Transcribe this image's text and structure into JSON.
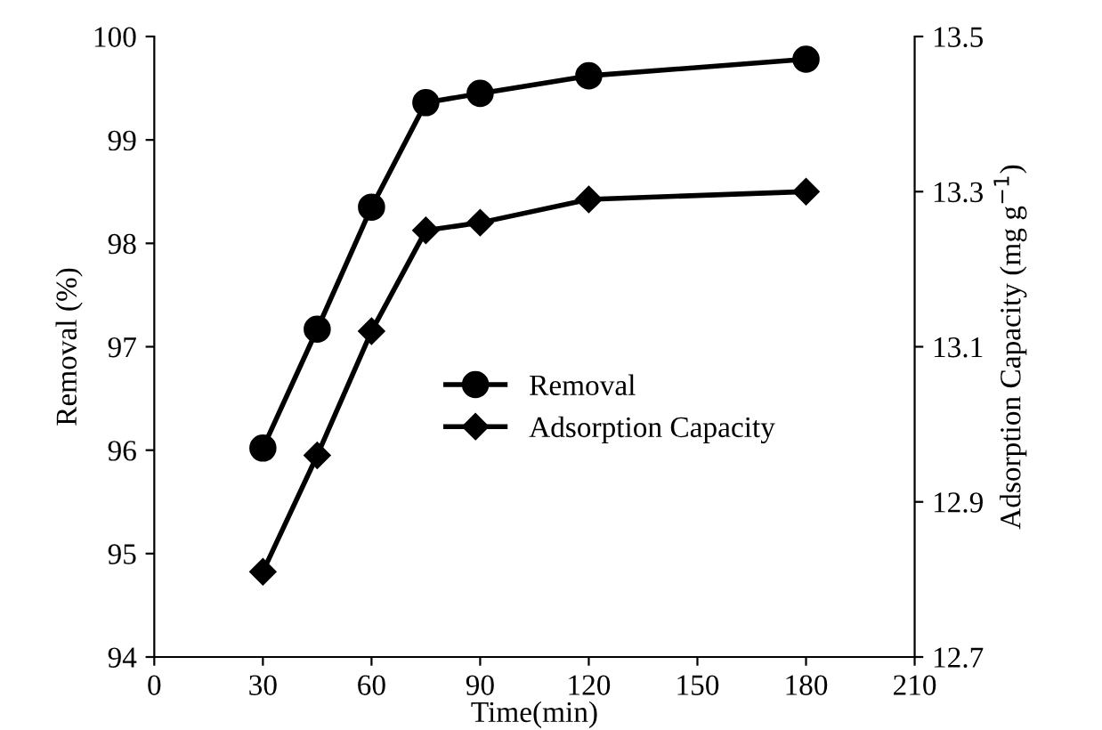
{
  "chart_data": {
    "type": "line",
    "xlabel": "Time(min)",
    "ylabel": "Removal (%)",
    "y2label": "Adsorption Capacity (mg g$^{−1}$)",
    "x": [
      30,
      45,
      60,
      75,
      90,
      120,
      180
    ],
    "series": [
      {
        "name": "Removal",
        "color": "#000000",
        "marker": "circle",
        "values": [
          96.02,
          97.17,
          98.35,
          99.36,
          99.45,
          99.62,
          99.78
        ]
      },
      {
        "name": "Adsorption Capacity",
        "color": "#000000",
        "marker": "diamond",
        "axis": "y2",
        "values": [
          12.81,
          12.96,
          13.12,
          13.25,
          13.26,
          13.29,
          13.3
        ]
      }
    ],
    "xlim": [
      0,
      210
    ],
    "xticks": [
      0,
      30,
      60,
      90,
      120,
      150,
      180,
      210
    ],
    "ylim": [
      94,
      100
    ],
    "yticks": [
      94,
      95,
      96,
      97,
      98,
      99,
      100
    ],
    "y2lim": [
      12.7,
      13.5
    ],
    "y2ticks": [
      12.7,
      12.9,
      13.1,
      13.3,
      13.5
    ],
    "legend": "center",
    "grid": false,
    "line_style": "solid"
  }
}
